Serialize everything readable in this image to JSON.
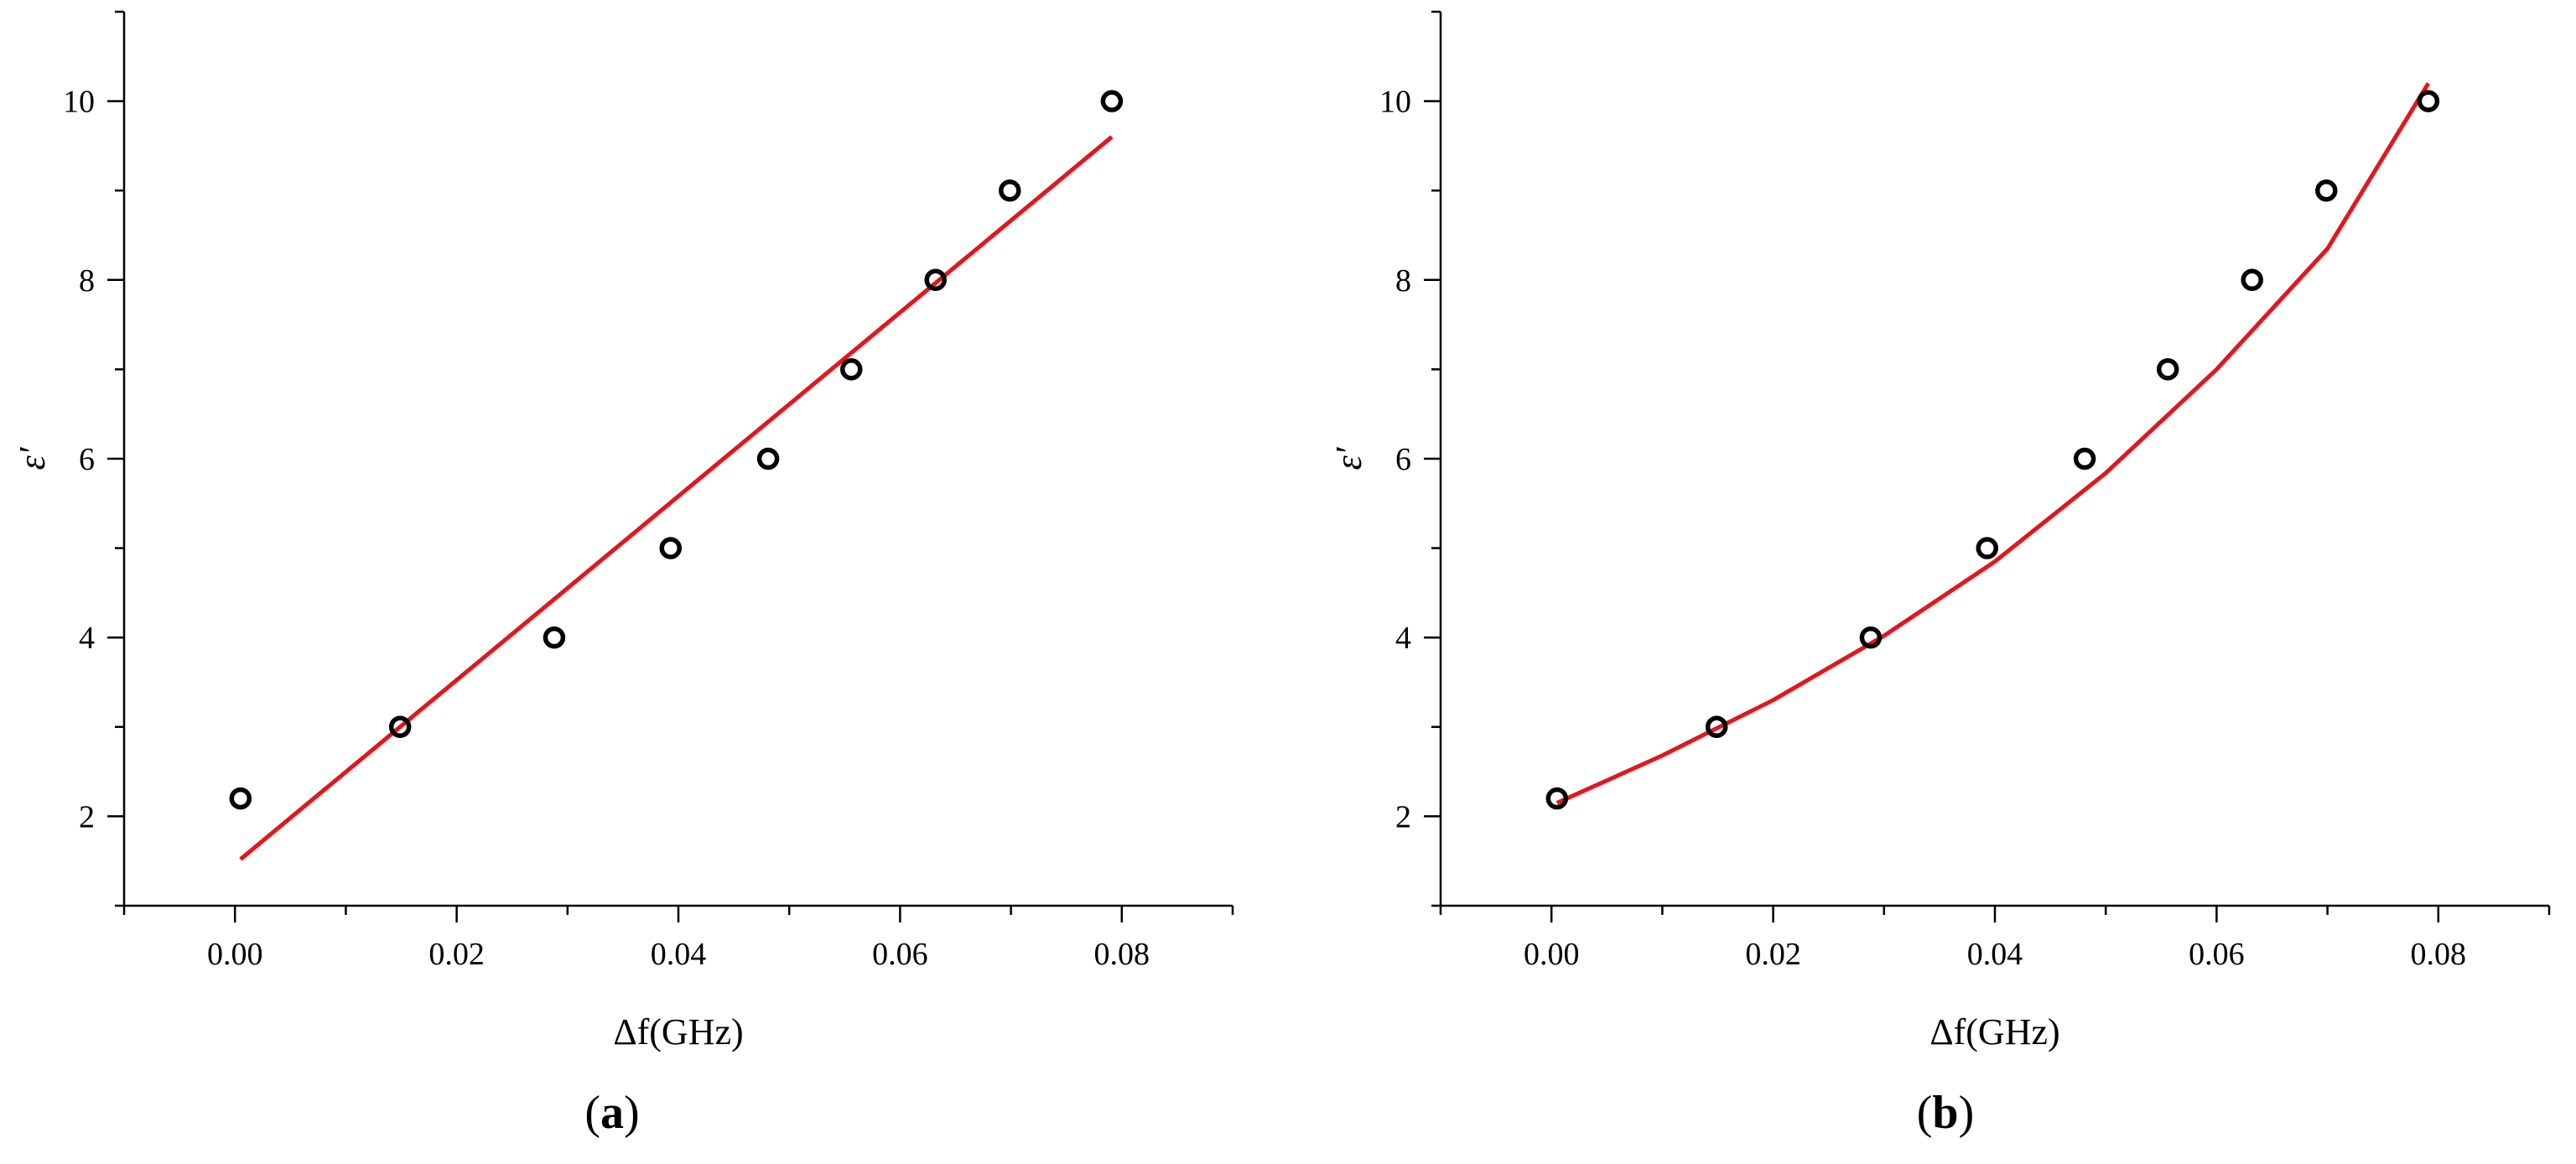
{
  "chart_data": [
    {
      "type": "scatter",
      "panel_label": "a",
      "xlabel": "Δf(GHz)",
      "ylabel": "ε′",
      "xlim": [
        -0.01,
        0.09
      ],
      "ylim": [
        1,
        11
      ],
      "xticks": [
        0.0,
        0.02,
        0.04,
        0.06,
        0.08
      ],
      "xtick_labels": [
        "0.00",
        "0.02",
        "0.04",
        "0.06",
        "0.08"
      ],
      "yticks": [
        2,
        4,
        6,
        8,
        10
      ],
      "ytick_labels": [
        "2",
        "4",
        "6",
        "8",
        "10"
      ],
      "grid": false,
      "series": [
        {
          "marker": "open-circle",
          "color": "#000000",
          "x": [
            0.0005,
            0.0149,
            0.0288,
            0.0393,
            0.0481,
            0.0556,
            0.0632,
            0.0699,
            0.0791
          ],
          "y": [
            2.2,
            3.0,
            4.0,
            5.0,
            6.0,
            7.0,
            8.0,
            9.0,
            10.0
          ]
        },
        {
          "line": "linear-fit",
          "color": "#e8141b",
          "x": [
            0.0005,
            0.0791
          ],
          "y": [
            1.52,
            9.6
          ]
        }
      ]
    },
    {
      "type": "scatter",
      "panel_label": "b",
      "xlabel": "Δf(GHz)",
      "ylabel": "ε′",
      "xlim": [
        -0.01,
        0.09
      ],
      "ylim": [
        1,
        11
      ],
      "xticks": [
        0.0,
        0.02,
        0.04,
        0.06,
        0.08
      ],
      "xtick_labels": [
        "0.00",
        "0.02",
        "0.04",
        "0.06",
        "0.08"
      ],
      "yticks": [
        2,
        4,
        6,
        8,
        10
      ],
      "ytick_labels": [
        "2",
        "4",
        "6",
        "8",
        "10"
      ],
      "grid": false,
      "series": [
        {
          "marker": "open-circle",
          "color": "#000000",
          "x": [
            0.0005,
            0.0149,
            0.0288,
            0.0393,
            0.0481,
            0.0556,
            0.0632,
            0.0699,
            0.0791
          ],
          "y": [
            2.2,
            3.0,
            4.0,
            5.0,
            6.0,
            7.0,
            8.0,
            9.0,
            10.0
          ]
        },
        {
          "line": "polynomial-fit",
          "color": "#e8141b",
          "x": [
            0.0005,
            0.01,
            0.02,
            0.03,
            0.04,
            0.05,
            0.06,
            0.07,
            0.0791
          ],
          "y": [
            2.15,
            2.68,
            3.3,
            4.02,
            4.85,
            5.84,
            7.0,
            8.35,
            10.2
          ]
        }
      ]
    }
  ]
}
